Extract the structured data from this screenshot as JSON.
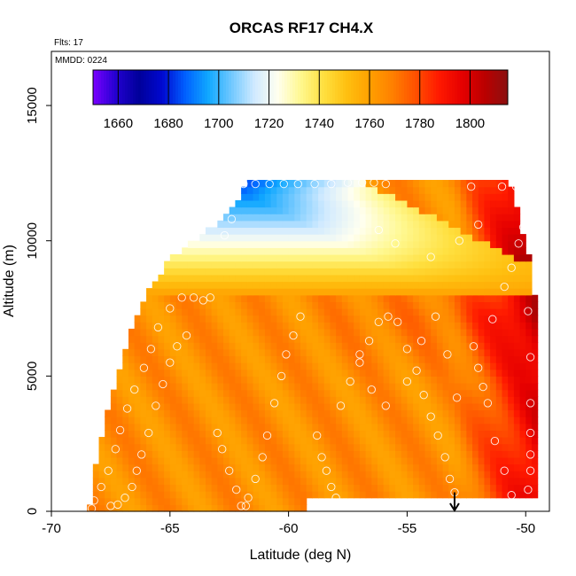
{
  "chart_data": {
    "type": "heatmap",
    "title": "ORCAS RF17 CH4.X",
    "flight_note": "Flts: 17",
    "date_note": "MMDD: 0224",
    "xlabel": "Latitude (deg N)",
    "ylabel": "Altitude (m)",
    "xlim": [
      -70,
      -49
    ],
    "ylim": [
      0,
      17000
    ],
    "x_ticks": [
      -70,
      -65,
      -60,
      -55,
      -50
    ],
    "x_tick_labels": [
      "-70",
      "-65",
      "-60",
      "-55",
      "-50"
    ],
    "y_ticks": [
      0,
      5000,
      10000,
      15000
    ],
    "y_tick_labels": [
      "0",
      "5000",
      "10000",
      "15000"
    ],
    "colorbar": {
      "range": [
        1650,
        1815
      ],
      "ticks": [
        1660,
        1680,
        1700,
        1720,
        1740,
        1760,
        1780,
        1800
      ],
      "tick_labels": [
        "1660",
        "1680",
        "1700",
        "1720",
        "1740",
        "1760",
        "1780",
        "1800"
      ],
      "colors": [
        "#7a00ff",
        "#2200d0",
        "#00009a",
        "#0008d0",
        "#0060ff",
        "#10a8ff",
        "#70c8ff",
        "#d0eaff",
        "#fffff0",
        "#fff890",
        "#ffe040",
        "#ffc010",
        "#ffa000",
        "#ff8000",
        "#ff5000",
        "#ff1a00",
        "#e60000",
        "#bb0000",
        "#8a1010"
      ]
    },
    "coverage": {
      "lat_min": [
        -68.4,
        -68.2,
        -67.8,
        -67.4,
        -66.9,
        -66.3,
        -65.7,
        -64.8,
        -63.2,
        -62.0,
        -61.8
      ],
      "lat_max": [
        -49.7,
        -49.7,
        -49.7,
        -49.7,
        -49.7,
        -49.7,
        -49.8,
        -50.0,
        -50.3,
        -50.6,
        -50.8
      ],
      "altitudes": [
        0,
        1500,
        3000,
        4500,
        6000,
        7500,
        8500,
        9500,
        10500,
        11500,
        12200
      ]
    },
    "arrow_marker": {
      "lat": -53,
      "alt_top": 700,
      "alt_bottom": 0
    },
    "observations": [
      [
        -68.3,
        100
      ],
      [
        -68.2,
        400
      ],
      [
        -67.9,
        900
      ],
      [
        -67.6,
        1500
      ],
      [
        -67.3,
        2300
      ],
      [
        -67.1,
        3000
      ],
      [
        -66.8,
        3800
      ],
      [
        -66.5,
        4500
      ],
      [
        -66.1,
        5300
      ],
      [
        -65.8,
        6000
      ],
      [
        -65.5,
        6800
      ],
      [
        -65.0,
        7500
      ],
      [
        -64.5,
        7900
      ],
      [
        -64.0,
        7900
      ],
      [
        -63.3,
        7900
      ],
      [
        -67.5,
        200
      ],
      [
        -67.2,
        250
      ],
      [
        -66.9,
        500
      ],
      [
        -66.6,
        900
      ],
      [
        -66.4,
        1500
      ],
      [
        -66.2,
        2100
      ],
      [
        -65.9,
        2900
      ],
      [
        -65.6,
        3900
      ],
      [
        -65.3,
        4700
      ],
      [
        -65.0,
        5500
      ],
      [
        -64.7,
        6100
      ],
      [
        -64.3,
        6500
      ],
      [
        -63.6,
        7800
      ],
      [
        -63.0,
        2900
      ],
      [
        -62.8,
        2300
      ],
      [
        -62.5,
        1500
      ],
      [
        -62.2,
        800
      ],
      [
        -62.0,
        200
      ],
      [
        -61.7,
        500
      ],
      [
        -61.4,
        1200
      ],
      [
        -61.1,
        2000
      ],
      [
        -60.9,
        2800
      ],
      [
        -60.6,
        4000
      ],
      [
        -60.3,
        5000
      ],
      [
        -60.1,
        5800
      ],
      [
        -59.8,
        6500
      ],
      [
        -59.5,
        7200
      ],
      [
        -61.8,
        200
      ],
      [
        -58.8,
        2800
      ],
      [
        -58.6,
        2000
      ],
      [
        -58.4,
        1500
      ],
      [
        -58.2,
        900
      ],
      [
        -58.0,
        500
      ],
      [
        -57.8,
        3900
      ],
      [
        -57.4,
        4800
      ],
      [
        -57.0,
        5500
      ],
      [
        -56.6,
        6300
      ],
      [
        -56.2,
        7000
      ],
      [
        -55.8,
        7200
      ],
      [
        -55.4,
        7000
      ],
      [
        -55.0,
        6000
      ],
      [
        -54.6,
        5200
      ],
      [
        -54.3,
        4300
      ],
      [
        -54.0,
        3500
      ],
      [
        -53.7,
        2800
      ],
      [
        -53.4,
        2000
      ],
      [
        -53.2,
        1200
      ],
      [
        -53.0,
        700
      ],
      [
        -52.7,
        300
      ],
      [
        -52.2,
        6100
      ],
      [
        -52.0,
        5300
      ],
      [
        -51.8,
        4600
      ],
      [
        -51.6,
        4000
      ],
      [
        -51.4,
        7100
      ],
      [
        -50.9,
        8300
      ],
      [
        -50.6,
        9000
      ],
      [
        -50.3,
        9900
      ],
      [
        -50.1,
        10500
      ],
      [
        -49.9,
        7400
      ],
      [
        -49.8,
        5700
      ],
      [
        -49.8,
        4000
      ],
      [
        -49.8,
        2900
      ],
      [
        -49.8,
        2100
      ],
      [
        -49.8,
        1500
      ],
      [
        -49.9,
        800
      ],
      [
        -50.2,
        300
      ],
      [
        -50.6,
        600
      ],
      [
        -50.9,
        1500
      ],
      [
        -51.3,
        2600
      ],
      [
        -55.5,
        9900
      ],
      [
        -56.2,
        10400
      ],
      [
        -54.0,
        9400
      ],
      [
        -52.8,
        10000
      ],
      [
        -52.0,
        10600
      ],
      [
        -52.3,
        12000
      ],
      [
        -51.0,
        12000
      ],
      [
        -50.4,
        12000
      ],
      [
        -62.4,
        10800
      ],
      [
        -62.7,
        10200
      ],
      [
        -61.9,
        12100
      ],
      [
        -61.4,
        12100
      ],
      [
        -60.8,
        12100
      ],
      [
        -60.2,
        12100
      ],
      [
        -59.6,
        12100
      ],
      [
        -58.9,
        12100
      ],
      [
        -58.2,
        12100
      ],
      [
        -57.5,
        12150
      ],
      [
        -56.9,
        12150
      ],
      [
        -56.4,
        12150
      ],
      [
        -55.9,
        12100
      ],
      [
        -57.0,
        5800
      ],
      [
        -56.5,
        4500
      ],
      [
        -55.9,
        3900
      ],
      [
        -55.0,
        4800
      ],
      [
        -54.4,
        6300
      ],
      [
        -53.8,
        7200
      ],
      [
        -53.3,
        5800
      ],
      [
        -52.9,
        4200
      ]
    ]
  }
}
